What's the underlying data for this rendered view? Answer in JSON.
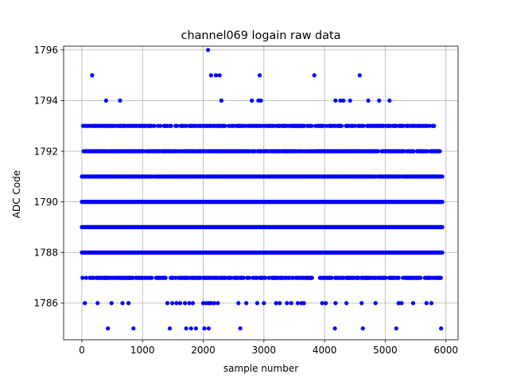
{
  "chart_data": {
    "type": "scatter",
    "title": "channel069 logain raw data",
    "xlabel": "sample number",
    "ylabel": "ADC Code",
    "xlim": [
      -300,
      6200
    ],
    "ylim": [
      1784.55,
      1796.15
    ],
    "xticks": [
      0,
      1000,
      2000,
      3000,
      4000,
      5000,
      6000
    ],
    "yticks": [
      1786,
      1788,
      1790,
      1792,
      1794,
      1796
    ],
    "xtick_labels": [
      "0",
      "1000",
      "2000",
      "3000",
      "4000",
      "5000",
      "6000"
    ],
    "ytick_labels": [
      "1786",
      "1788",
      "1790",
      "1792",
      "1794",
      "1796"
    ],
    "grid": true,
    "marker_color": "#0000ff",
    "num_samples": 5950,
    "dense_levels": [
      {
        "y": 1787,
        "x_start": 0,
        "x_end": 5950,
        "density": 0.55
      },
      {
        "y": 1788,
        "x_start": 0,
        "x_end": 5950,
        "density": 1.0
      },
      {
        "y": 1789,
        "x_start": 0,
        "x_end": 5950,
        "density": 1.0
      },
      {
        "y": 1790,
        "x_start": 0,
        "x_end": 5950,
        "density": 1.0
      },
      {
        "y": 1791,
        "x_start": 0,
        "x_end": 5950,
        "density": 0.95
      },
      {
        "y": 1792,
        "x_start": 30,
        "x_end": 5900,
        "density": 0.75
      },
      {
        "y": 1793,
        "x_start": 20,
        "x_end": 5850,
        "density": 0.6
      }
    ],
    "sparse_points": [
      {
        "x": 2080,
        "y": 1796
      },
      {
        "x": 170,
        "y": 1795
      },
      {
        "x": 2130,
        "y": 1795
      },
      {
        "x": 2210,
        "y": 1795
      },
      {
        "x": 2270,
        "y": 1795
      },
      {
        "x": 2930,
        "y": 1795
      },
      {
        "x": 3830,
        "y": 1795
      },
      {
        "x": 4580,
        "y": 1795
      },
      {
        "x": 400,
        "y": 1794
      },
      {
        "x": 630,
        "y": 1794
      },
      {
        "x": 2300,
        "y": 1794
      },
      {
        "x": 2800,
        "y": 1794
      },
      {
        "x": 2910,
        "y": 1794
      },
      {
        "x": 2950,
        "y": 1794
      },
      {
        "x": 4180,
        "y": 1794
      },
      {
        "x": 4260,
        "y": 1794
      },
      {
        "x": 4310,
        "y": 1794
      },
      {
        "x": 4420,
        "y": 1794
      },
      {
        "x": 4720,
        "y": 1794
      },
      {
        "x": 4900,
        "y": 1794
      },
      {
        "x": 5070,
        "y": 1794
      },
      {
        "x": 50,
        "y": 1786
      },
      {
        "x": 260,
        "y": 1786
      },
      {
        "x": 490,
        "y": 1786
      },
      {
        "x": 670,
        "y": 1786
      },
      {
        "x": 770,
        "y": 1786
      },
      {
        "x": 1410,
        "y": 1786
      },
      {
        "x": 1490,
        "y": 1786
      },
      {
        "x": 1560,
        "y": 1786
      },
      {
        "x": 1620,
        "y": 1786
      },
      {
        "x": 1700,
        "y": 1786
      },
      {
        "x": 1770,
        "y": 1786
      },
      {
        "x": 1830,
        "y": 1786
      },
      {
        "x": 2000,
        "y": 1786
      },
      {
        "x": 2050,
        "y": 1786
      },
      {
        "x": 2090,
        "y": 1786
      },
      {
        "x": 2130,
        "y": 1786
      },
      {
        "x": 2180,
        "y": 1786
      },
      {
        "x": 2240,
        "y": 1786
      },
      {
        "x": 2580,
        "y": 1786
      },
      {
        "x": 2710,
        "y": 1786
      },
      {
        "x": 2890,
        "y": 1786
      },
      {
        "x": 3000,
        "y": 1786
      },
      {
        "x": 3200,
        "y": 1786
      },
      {
        "x": 3260,
        "y": 1786
      },
      {
        "x": 3380,
        "y": 1786
      },
      {
        "x": 3450,
        "y": 1786
      },
      {
        "x": 3560,
        "y": 1786
      },
      {
        "x": 3620,
        "y": 1786
      },
      {
        "x": 3660,
        "y": 1786
      },
      {
        "x": 3960,
        "y": 1786
      },
      {
        "x": 4020,
        "y": 1786
      },
      {
        "x": 4180,
        "y": 1786
      },
      {
        "x": 4360,
        "y": 1786
      },
      {
        "x": 4610,
        "y": 1786
      },
      {
        "x": 4840,
        "y": 1786
      },
      {
        "x": 5220,
        "y": 1786
      },
      {
        "x": 5270,
        "y": 1786
      },
      {
        "x": 5460,
        "y": 1786
      },
      {
        "x": 5680,
        "y": 1786
      },
      {
        "x": 5760,
        "y": 1786
      },
      {
        "x": 430,
        "y": 1785
      },
      {
        "x": 850,
        "y": 1785
      },
      {
        "x": 1450,
        "y": 1785
      },
      {
        "x": 1720,
        "y": 1785
      },
      {
        "x": 1800,
        "y": 1785
      },
      {
        "x": 1880,
        "y": 1785
      },
      {
        "x": 2020,
        "y": 1785
      },
      {
        "x": 2090,
        "y": 1785
      },
      {
        "x": 2610,
        "y": 1785
      },
      {
        "x": 4170,
        "y": 1785
      },
      {
        "x": 4630,
        "y": 1785
      },
      {
        "x": 5180,
        "y": 1785
      },
      {
        "x": 5920,
        "y": 1785
      }
    ]
  }
}
